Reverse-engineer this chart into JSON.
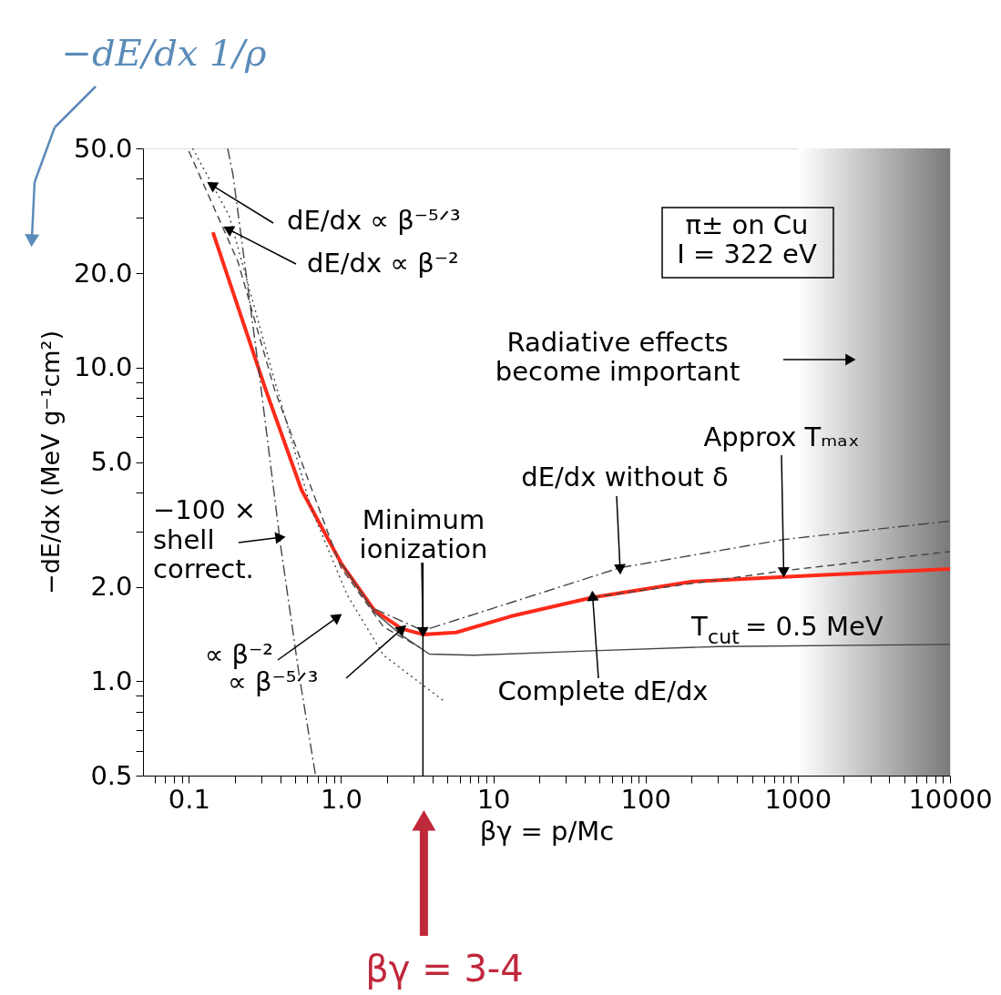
{
  "chart_data": {
    "type": "line",
    "xlabel": "βγ = p/Mc",
    "ylabel": "−dE/dx (MeV g⁻¹cm²)",
    "xlim": [
      0.05,
      10000
    ],
    "ylim": [
      0.5,
      50
    ],
    "log": "xy",
    "grid": false,
    "legend": false,
    "marker": "none",
    "xticks": [
      {
        "value": 0.06,
        "label": null
      },
      {
        "value": 0.07,
        "label": null
      },
      {
        "value": 0.08,
        "label": null
      },
      {
        "value": 0.09,
        "label": null
      },
      0.1,
      {
        "value": 0.2,
        "label": null
      },
      {
        "value": 0.3,
        "label": null
      },
      {
        "value": 0.4,
        "label": null
      },
      {
        "value": 0.5,
        "label": null
      },
      {
        "value": 0.6,
        "label": null
      },
      {
        "value": 0.7,
        "label": null
      },
      {
        "value": 0.8,
        "label": null
      },
      {
        "value": 0.9,
        "label": null
      },
      {
        "value": 1,
        "label": "1.0"
      },
      {
        "value": 2,
        "label": null
      },
      {
        "value": 3,
        "label": null
      },
      {
        "value": 4,
        "label": null
      },
      {
        "value": 5,
        "label": null
      },
      {
        "value": 6,
        "label": null
      },
      {
        "value": 7,
        "label": null
      },
      {
        "value": 8,
        "label": null
      },
      {
        "value": 9,
        "label": null
      },
      10,
      {
        "value": 20,
        "label": null
      },
      {
        "value": 30,
        "label": null
      },
      {
        "value": 40,
        "label": null
      },
      {
        "value": 50,
        "label": null
      },
      {
        "value": 60,
        "label": null
      },
      {
        "value": 70,
        "label": null
      },
      {
        "value": 80,
        "label": null
      },
      {
        "value": 90,
        "label": null
      },
      100,
      {
        "value": 200,
        "label": null
      },
      {
        "value": 300,
        "label": null
      },
      {
        "value": 400,
        "label": null
      },
      {
        "value": 500,
        "label": null
      },
      {
        "value": 600,
        "label": null
      },
      {
        "value": 700,
        "label": null
      },
      {
        "value": 800,
        "label": null
      },
      {
        "value": 900,
        "label": null
      },
      1000,
      {
        "value": 2000,
        "label": null
      },
      {
        "value": 3000,
        "label": null
      },
      {
        "value": 4000,
        "label": null
      },
      {
        "value": 5000,
        "label": null
      },
      {
        "value": 6000,
        "label": null
      },
      {
        "value": 7000,
        "label": null
      },
      {
        "value": 8000,
        "label": null
      },
      {
        "value": 9000,
        "label": null
      },
      10000
    ],
    "yticks": [
      0.5,
      {
        "value": 0.6,
        "label": null
      },
      {
        "value": 0.7,
        "label": null
      },
      {
        "value": 0.8,
        "label": null
      },
      {
        "value": 0.9,
        "label": null
      },
      {
        "value": 1,
        "label": "1.0"
      },
      {
        "value": 2,
        "label": "2.0"
      },
      {
        "value": 3,
        "label": null
      },
      {
        "value": 4,
        "label": null
      },
      {
        "value": 5,
        "label": "5.0"
      },
      {
        "value": 6,
        "label": null
      },
      {
        "value": 7,
        "label": null
      },
      {
        "value": 8,
        "label": null
      },
      {
        "value": 9,
        "label": null
      },
      {
        "value": 10,
        "label": "10.0"
      },
      {
        "value": 20,
        "label": "20.0"
      },
      {
        "value": 30,
        "label": null
      },
      {
        "value": 40,
        "label": null
      },
      {
        "value": 50,
        "label": "50.0"
      }
    ],
    "ref_lines": [
      {
        "axis": "x",
        "value": 3.45,
        "color": "#000000"
      }
    ],
    "bands": [
      {
        "axis": "x",
        "from": 1000,
        "to": 10000,
        "label": "Radiative effects\nbecome important",
        "color": "#7a7a7a"
      }
    ],
    "series": [
      {
        "color": "#ff2a1a",
        "line_style": "solid",
        "x": [
          0.144,
          0.32,
          0.55,
          1.0,
          1.66,
          2.5,
          3.45,
          5.7,
          13,
          45,
          204,
          1400,
          10000
        ],
        "values": [
          27,
          8.5,
          4.07,
          2.38,
          1.68,
          1.47,
          1.41,
          1.43,
          1.61,
          1.85,
          2.08,
          2.18,
          2.28
        ]
      },
      {
        "name": "T$_{cut}$ = 0.5 MeV",
        "color": "#444444",
        "line_style": "solid",
        "x": [
          1.0,
          1.66,
          2.5,
          3.8,
          7.5,
          45,
          300,
          10000
        ],
        "values": [
          2.38,
          1.66,
          1.4,
          1.22,
          1.21,
          1.25,
          1.29,
          1.31
        ]
      },
      {
        "color": "#444444",
        "line_style": "dashdot",
        "x": [
          1.66,
          3.45,
          13,
          68,
          808,
          10000
        ],
        "values": [
          1.7,
          1.45,
          1.78,
          2.3,
          2.83,
          3.24
        ]
      },
      {
        "color": "#444444",
        "line_style": "dashed",
        "x": [
          45,
          89,
          808,
          10000
        ],
        "values": [
          1.85,
          1.94,
          2.25,
          2.59
        ]
      },
      {
        "color": "#444444",
        "line_style": "dotted",
        "x": [
          0.106,
          0.184,
          0.366,
          0.635,
          1.1,
          1.9,
          4.66
        ],
        "values": [
          50,
          30.5,
          9.1,
          3.56,
          1.88,
          1.21,
          0.87
        ]
      },
      {
        "color": "#444444",
        "line_style": "dashed",
        "x": [
          0.1,
          0.21,
          0.366,
          1.0,
          1.9,
          3.3
        ],
        "values": [
          49,
          21.8,
          8.5,
          2.3,
          1.49,
          1.28
        ]
      },
      {
        "color": "#444444",
        "line_style": "dashdot",
        "x": [
          0.18,
          0.195,
          0.286,
          0.404,
          0.53,
          0.68
        ],
        "values": [
          50,
          41.2,
          10.1,
          2.63,
          1.05,
          0.5
        ]
      }
    ],
    "annotations": [
      "−dE/dx 1/ρ",
      "π± on Cu\nI = 322 eV",
      {
        "text": "dE/dx ∝ β⁻⁵ᐟ³",
        "x": 0.144,
        "y": 38
      },
      {
        "text": "dE/dx ∝ β⁻²",
        "x": 0.185,
        "y": 27.5
      },
      {
        "text": "Approx Tₘₐₓ",
        "x": 808,
        "y": 2.25
      },
      {
        "text": "dE/dx without δ",
        "x": 68,
        "y": 2.3
      },
      {
        "text": "Minimum\nionization",
        "x": 3.45,
        "y": 1.45
      },
      {
        "text": "Complete dE/dx",
        "x": 45,
        "y": 1.85
      },
      {
        "text": "−100 ×\nshell\ncorrect.",
        "x": 0.39,
        "y": 2.87
      },
      {
        "text": "∝ β⁻²",
        "x": 0.93,
        "y": 1.59
      },
      {
        "text": "∝ β⁻⁵ᐟ³",
        "x": 2.48,
        "y": 1.46
      },
      {
        "text": "βγ = 3-4",
        "x": 3.5
      }
    ]
  }
}
